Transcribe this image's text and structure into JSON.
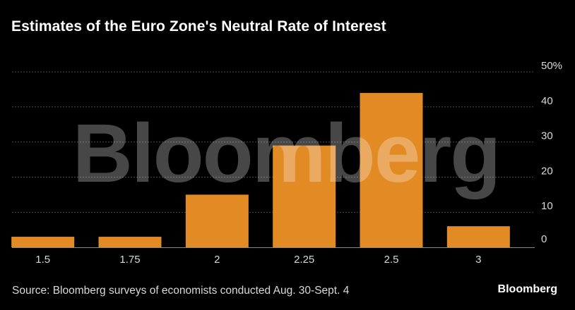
{
  "title": "Estimates of the Euro Zone's Neutral Rate of Interest",
  "source": "Source: Bloomberg surveys of economists conducted Aug. 30-Sept. 4",
  "brand": "Bloomberg",
  "watermark": "Bloomberg",
  "colors": {
    "background": "#000000",
    "bar": "#E28A24",
    "grid": "#4a4a4a",
    "text": "#d9d9d9"
  },
  "chart_data": {
    "type": "bar",
    "title": "Estimates of the Euro Zone's Neutral Rate of Interest",
    "categories": [
      "1.5",
      "1.75",
      "2",
      "2.25",
      "2.5",
      "3"
    ],
    "values": [
      3,
      3,
      15,
      29,
      44,
      6
    ],
    "ylim": [
      0,
      50
    ],
    "y_ticks": [
      0,
      10,
      20,
      30,
      40,
      50
    ],
    "y_tick_labels": [
      "0",
      "10",
      "20",
      "30",
      "40",
      "50%"
    ],
    "y_axis_position": "right",
    "grid": true,
    "legend": "none"
  }
}
